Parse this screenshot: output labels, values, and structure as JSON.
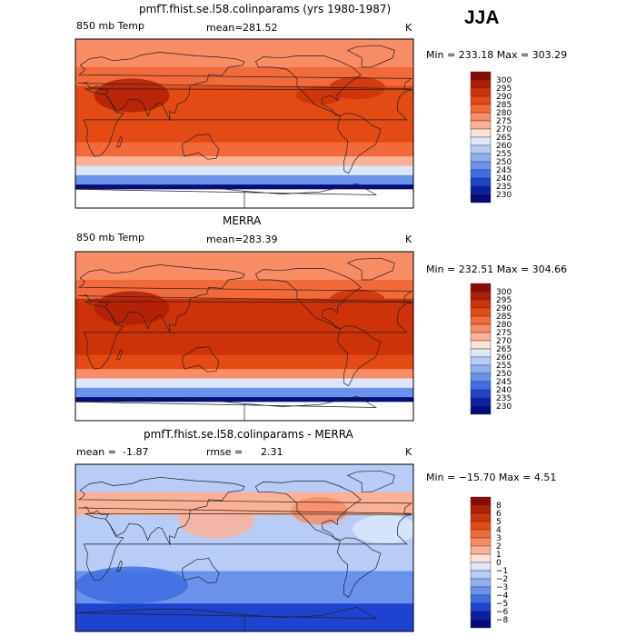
{
  "season": "JJA",
  "chart_data": [
    {
      "type": "heatmap",
      "title": "pmfT.fhist.se.l58.colinparams (yrs 1980-1987)",
      "left_label": "850 mb Temp",
      "mean_label": "mean=",
      "mean_value": "281.52",
      "units": "K",
      "min_label": "Min =",
      "min_value": "233.18",
      "max_label": "Max =",
      "max_value": "303.29",
      "stats_text": "Min = 233.18  Max = 303.29",
      "colorbar": {
        "levels": [
          "300",
          "295",
          "290",
          "285",
          "280",
          "275",
          "270",
          "265",
          "260",
          "255",
          "250",
          "245",
          "240",
          "235",
          "230"
        ],
        "colors": [
          "#8b0a02",
          "#b01e07",
          "#cd3208",
          "#e44a13",
          "#f26a3a",
          "#f88d65",
          "#fbb196",
          "#fde2d5",
          "#dce7fb",
          "#b7cdf7",
          "#8fb0f0",
          "#6a92eb",
          "#3f6de3",
          "#1d43d0",
          "#0b1fa6",
          "#050b7a"
        ]
      },
      "field_model": "model",
      "mean_value_num": 281.52
    },
    {
      "type": "heatmap",
      "title": "MERRA",
      "left_label": "850 mb Temp",
      "mean_label": "mean=",
      "mean_value": "283.39",
      "units": "K",
      "min_label": "Min =",
      "min_value": "232.51",
      "max_label": "Max =",
      "max_value": "304.66",
      "stats_text": "Min = 232.51  Max = 304.66",
      "colorbar": {
        "levels": [
          "300",
          "295",
          "290",
          "285",
          "280",
          "275",
          "270",
          "265",
          "260",
          "255",
          "250",
          "245",
          "240",
          "235",
          "230"
        ],
        "colors": [
          "#8b0a02",
          "#b01e07",
          "#cd3208",
          "#e44a13",
          "#f26a3a",
          "#f88d65",
          "#fbb196",
          "#fde2d5",
          "#dce7fb",
          "#b7cdf7",
          "#8fb0f0",
          "#6a92eb",
          "#3f6de3",
          "#1d43d0",
          "#0b1fa6",
          "#050b7a"
        ]
      },
      "field_model": "merra",
      "mean_value_num": 283.39
    },
    {
      "type": "heatmap",
      "title": "pmfT.fhist.se.l58.colinparams - MERRA",
      "left_label": "mean =",
      "mean_label": "rmse =",
      "mean_value": "-1.87",
      "rmse_value": "2.31",
      "units": "K",
      "min_label": "Min =",
      "min_value": "-15.70",
      "max_label": "Max =",
      "max_value": "4.51",
      "stats_text": "Min = −15.70  Max =    4.51",
      "colorbar": {
        "levels": [
          "8",
          "6",
          "5",
          "4",
          "3",
          "2",
          "1",
          "0",
          "−1",
          "−2",
          "−3",
          "−4",
          "−5",
          "−6",
          "−8"
        ],
        "colors": [
          "#8b0a02",
          "#b01e07",
          "#cd3208",
          "#e44a13",
          "#f26a3a",
          "#f88d65",
          "#fbb196",
          "#fde2d5",
          "#dce7fb",
          "#b7cdf7",
          "#8fb0f0",
          "#6a92eb",
          "#3f6de3",
          "#1d43d0",
          "#0b1fa6",
          "#050b7a"
        ]
      },
      "field_model": "diff",
      "mean_value_num": -1.87
    }
  ]
}
